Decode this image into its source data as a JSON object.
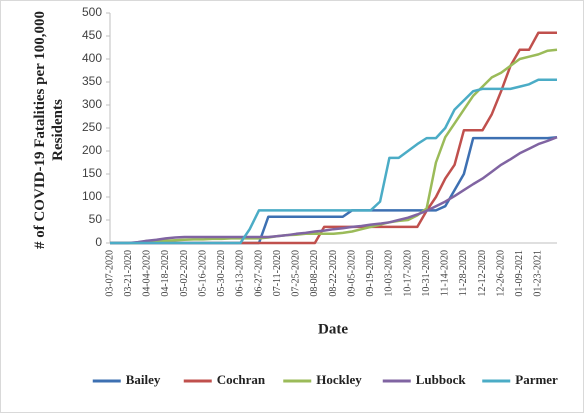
{
  "chart_data": {
    "type": "line",
    "xlabel": "Date",
    "ylabel": "# of COVID-19 Fatalities per 100,000 Residents",
    "categories": [
      "03-07-2020",
      null,
      "03-21-2020",
      null,
      "04-04-2020",
      null,
      "04-18-2020",
      null,
      "05-02-2020",
      null,
      "05-16-2020",
      null,
      "05-30-2020",
      null,
      "06-13-2020",
      null,
      "06-27-2020",
      null,
      "07-11-2020",
      null,
      "07-25-2020",
      null,
      "08-08-2020",
      null,
      "08-22-2020",
      null,
      "09-05-2020",
      null,
      "09-19-2020",
      null,
      "10-03-2020",
      null,
      "10-17-2020",
      null,
      "10-31-2020",
      null,
      "11-14-2020",
      null,
      "11-28-2020",
      null,
      "12-12-2020",
      null,
      "12-26-2020",
      null,
      "01-09-2021",
      null,
      "01-23-2021",
      null,
      null
    ],
    "series": [
      {
        "name": "Bailey",
        "color": "#3d70b2",
        "values": [
          0,
          0,
          0,
          0,
          0,
          0,
          0,
          0,
          0,
          0,
          0,
          0,
          0,
          0,
          0,
          0,
          0,
          57,
          57,
          57,
          57,
          57,
          57,
          57,
          57,
          57,
          71,
          71,
          71,
          71,
          71,
          71,
          71,
          71,
          71,
          71,
          80,
          115,
          150,
          228,
          228,
          228,
          228,
          228,
          228,
          228,
          228,
          228,
          230
        ]
      },
      {
        "name": "Cochran",
        "color": "#c0504d",
        "values": [
          0,
          0,
          0,
          0,
          0,
          0,
          0,
          0,
          0,
          0,
          0,
          0,
          0,
          0,
          0,
          0,
          0,
          0,
          0,
          0,
          0,
          0,
          0,
          35,
          35,
          35,
          35,
          35,
          35,
          35,
          35,
          35,
          35,
          35,
          70,
          100,
          140,
          170,
          245,
          245,
          245,
          280,
          330,
          385,
          420,
          420,
          457,
          457,
          457
        ]
      },
      {
        "name": "Hockley",
        "color": "#9bbb59",
        "values": [
          0,
          0,
          0,
          0,
          5,
          5,
          5,
          6,
          7,
          8,
          8,
          9,
          9,
          10,
          10,
          10,
          10,
          12,
          15,
          17,
          18,
          20,
          20,
          20,
          20,
          22,
          25,
          30,
          35,
          40,
          45,
          48,
          50,
          60,
          75,
          175,
          230,
          260,
          290,
          320,
          340,
          360,
          370,
          385,
          400,
          405,
          410,
          418,
          420
        ]
      },
      {
        "name": "Lubbock",
        "color": "#8064a2",
        "values": [
          0,
          0,
          0,
          2,
          5,
          7,
          10,
          12,
          13,
          13,
          13,
          13,
          13,
          13,
          13,
          13,
          13,
          13,
          15,
          17,
          20,
          22,
          25,
          27,
          30,
          32,
          35,
          37,
          40,
          42,
          45,
          50,
          55,
          62,
          70,
          80,
          90,
          102,
          115,
          128,
          140,
          155,
          170,
          182,
          195,
          205,
          215,
          222,
          230
        ]
      },
      {
        "name": "Parmer",
        "color": "#4bacc6",
        "values": [
          0,
          0,
          0,
          0,
          0,
          0,
          0,
          0,
          0,
          0,
          0,
          0,
          0,
          0,
          0,
          30,
          71,
          71,
          71,
          71,
          71,
          71,
          71,
          71,
          71,
          71,
          71,
          71,
          71,
          90,
          185,
          185,
          200,
          215,
          228,
          228,
          250,
          290,
          310,
          330,
          335,
          335,
          335,
          335,
          340,
          345,
          355,
          355,
          355
        ]
      }
    ],
    "ylim": [
      0,
      500
    ],
    "yticks": [
      0,
      50,
      100,
      150,
      200,
      250,
      300,
      350,
      400,
      450,
      500
    ],
    "grid": false,
    "legend": "bottom"
  }
}
